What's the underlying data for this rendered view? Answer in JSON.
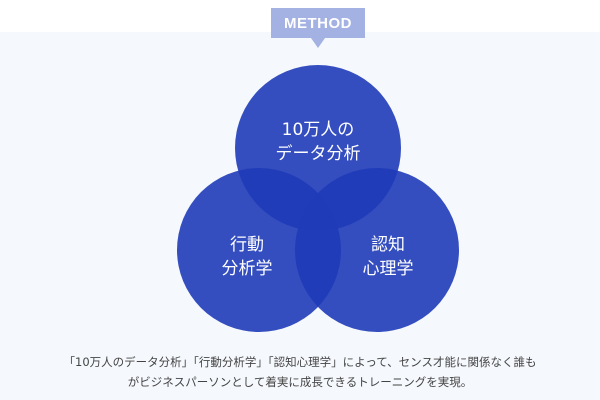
{
  "badge": {
    "label": "METHOD"
  },
  "diagram": {
    "circles": [
      {
        "label_line1": "10万人の",
        "label_line2": "データ分析"
      },
      {
        "label_line1": "行動",
        "label_line2": "分析学"
      },
      {
        "label_line1": "認知",
        "label_line2": "心理学"
      }
    ],
    "colors": {
      "circle": "#1f3bb8",
      "badge": "#a3b1e3"
    }
  },
  "description": {
    "line1": "「10万人のデータ分析」「行動分析学」「認知心理学」によって、センス才能に関係なく誰も",
    "line2": "がビジネスパーソンとして着実に成長できるトレーニングを実現。"
  }
}
